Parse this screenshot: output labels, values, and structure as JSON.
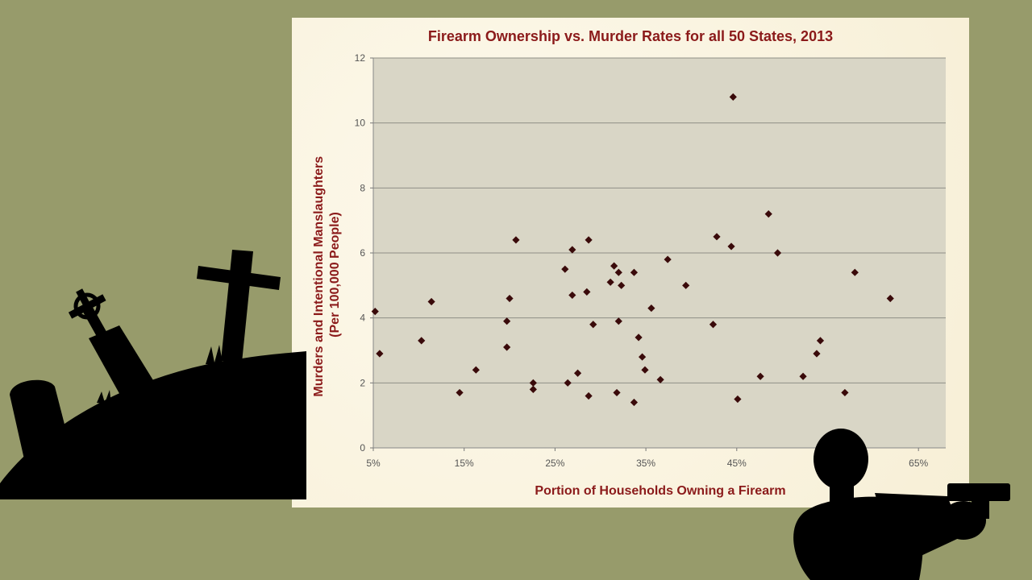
{
  "colors": {
    "background": "#979b6b",
    "panel": "#fbf5e2",
    "plot_area": "#d9d6c6",
    "title": "#8b1a1a",
    "marker": "#3a0a0a",
    "silhouette": "#000000"
  },
  "icons": {
    "graveyard": "graveyard-silhouette-icon",
    "gunman": "gunman-silhouette-icon"
  },
  "chart_data": {
    "type": "scatter",
    "title": "Firearm Ownership vs. Murder Rates for all 50 States, 2013",
    "xlabel": "Portion of Households Owning a Firearm",
    "ylabel_line1": "Murders and Intentional Manslaughters",
    "ylabel_line2": "(Per 100,000 People)",
    "xlim": [
      5,
      68
    ],
    "ylim": [
      0,
      12
    ],
    "x_ticks": [
      5,
      15,
      25,
      35,
      45,
      65
    ],
    "x_tick_labels": [
      "5%",
      "15%",
      "25%",
      "35%",
      "45%",
      "65%"
    ],
    "y_ticks": [
      0,
      2,
      4,
      6,
      8,
      10,
      12
    ],
    "y_tick_labels": [
      "0",
      "2",
      "4",
      "6",
      "8",
      "10",
      "12"
    ],
    "grid": "horizontal",
    "legend": "none",
    "points": [
      {
        "x": 5.2,
        "y": 4.2
      },
      {
        "x": 5.7,
        "y": 2.9
      },
      {
        "x": 10.3,
        "y": 3.3
      },
      {
        "x": 11.4,
        "y": 4.5
      },
      {
        "x": 14.5,
        "y": 1.7
      },
      {
        "x": 16.3,
        "y": 2.4
      },
      {
        "x": 19.7,
        "y": 3.9
      },
      {
        "x": 19.7,
        "y": 3.1
      },
      {
        "x": 20.0,
        "y": 4.6
      },
      {
        "x": 20.7,
        "y": 6.4
      },
      {
        "x": 22.6,
        "y": 2.0
      },
      {
        "x": 22.6,
        "y": 1.8
      },
      {
        "x": 26.1,
        "y": 5.5
      },
      {
        "x": 26.4,
        "y": 2.0
      },
      {
        "x": 26.9,
        "y": 6.1
      },
      {
        "x": 26.9,
        "y": 4.7
      },
      {
        "x": 27.5,
        "y": 2.3
      },
      {
        "x": 28.5,
        "y": 4.8
      },
      {
        "x": 28.7,
        "y": 6.4
      },
      {
        "x": 28.7,
        "y": 1.6
      },
      {
        "x": 29.2,
        "y": 3.8
      },
      {
        "x": 31.1,
        "y": 5.1
      },
      {
        "x": 31.5,
        "y": 5.6
      },
      {
        "x": 31.8,
        "y": 1.7
      },
      {
        "x": 32.0,
        "y": 5.4
      },
      {
        "x": 32.0,
        "y": 3.9
      },
      {
        "x": 32.3,
        "y": 5.0
      },
      {
        "x": 33.7,
        "y": 5.4
      },
      {
        "x": 33.7,
        "y": 1.4
      },
      {
        "x": 34.2,
        "y": 3.4
      },
      {
        "x": 34.6,
        "y": 2.8
      },
      {
        "x": 34.9,
        "y": 2.4
      },
      {
        "x": 35.6,
        "y": 4.3
      },
      {
        "x": 36.6,
        "y": 2.1
      },
      {
        "x": 37.4,
        "y": 5.8
      },
      {
        "x": 39.4,
        "y": 5.0
      },
      {
        "x": 42.4,
        "y": 3.8
      },
      {
        "x": 42.8,
        "y": 6.5
      },
      {
        "x": 44.4,
        "y": 6.2
      },
      {
        "x": 44.6,
        "y": 10.8
      },
      {
        "x": 45.1,
        "y": 1.5
      },
      {
        "x": 47.6,
        "y": 2.2
      },
      {
        "x": 48.5,
        "y": 7.2
      },
      {
        "x": 49.5,
        "y": 6.0
      },
      {
        "x": 52.3,
        "y": 2.2
      },
      {
        "x": 53.8,
        "y": 2.9
      },
      {
        "x": 54.2,
        "y": 3.3
      },
      {
        "x": 56.9,
        "y": 1.7
      },
      {
        "x": 58.0,
        "y": 5.4
      },
      {
        "x": 61.9,
        "y": 4.6
      }
    ]
  }
}
